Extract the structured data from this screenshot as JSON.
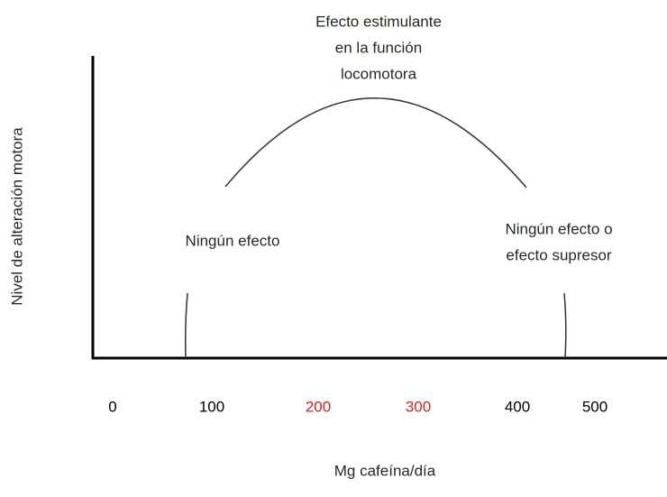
{
  "y_axis": {
    "label": "Nivel de alteración motora"
  },
  "x_axis": {
    "label": "Mg cafeína/día",
    "ticks": [
      {
        "label": "0",
        "color": "#000000"
      },
      {
        "label": "100",
        "color": "#000000"
      },
      {
        "label": "200",
        "color": "#e02020"
      },
      {
        "label": "300",
        "color": "#e02020"
      },
      {
        "label": "400",
        "color": "#000000"
      },
      {
        "label": "500",
        "color": "#000000"
      }
    ]
  },
  "annotations": [
    {
      "lines": [
        "Efecto estimulante",
        "en la función",
        "locomotora"
      ]
    },
    {
      "lines": [
        "Ningún efecto"
      ]
    },
    {
      "lines": [
        "Ningún efecto o",
        "efecto supresor"
      ]
    }
  ]
}
